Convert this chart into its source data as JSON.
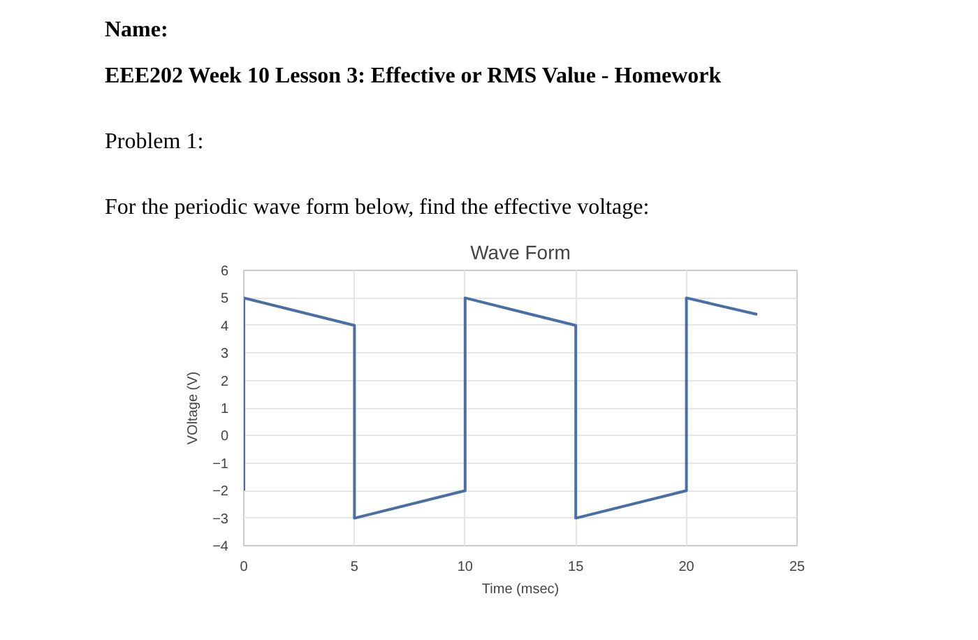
{
  "chart_data": {
    "type": "line",
    "title": "Wave Form",
    "xlabel": "Time (msec)",
    "ylabel": "VOltage (V)",
    "annotations": [
      "Name:",
      "EEE202 Week 10 Lesson 3: Effective or RMS Value - Homework",
      "Problem 1:",
      "For the periodic wave form below, find the effective voltage:"
    ],
    "series": [
      {
        "color": "#4a6fa5",
        "x": [
          0,
          0,
          5,
          5,
          10,
          10,
          15,
          15,
          20,
          20,
          23.2
        ],
        "values": [
          -2,
          5,
          4,
          -3,
          -2,
          5,
          4,
          -3,
          -2,
          5,
          4.4
        ]
      }
    ],
    "xlim": [
      0,
      25
    ],
    "ylim": [
      -4,
      6
    ],
    "xticks": [
      0,
      5,
      10,
      15,
      20,
      25
    ],
    "yticks": [
      -4,
      -3,
      -2,
      -1,
      0,
      1,
      2,
      3,
      4,
      5,
      6
    ],
    "grid": true,
    "marker": "none",
    "line_style": "solid"
  }
}
